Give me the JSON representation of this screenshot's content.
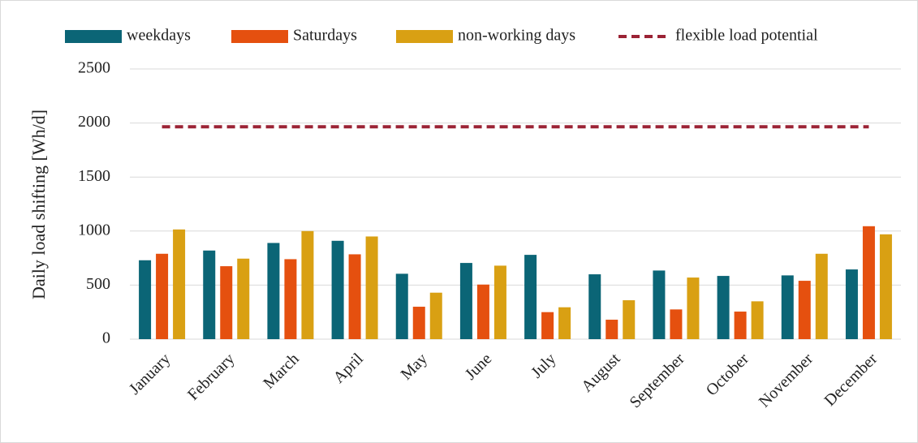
{
  "chart_data": {
    "type": "bar",
    "y_label": "Daily load shifting [Wh/d]",
    "categories": [
      "January",
      "February",
      "March",
      "April",
      "May",
      "June",
      "July",
      "August",
      "September",
      "October",
      "November",
      "December"
    ],
    "series": [
      {
        "name": "weekdays",
        "color": "#0b6576",
        "values": [
          730,
          820,
          890,
          910,
          605,
          705,
          780,
          600,
          635,
          585,
          590,
          645
        ]
      },
      {
        "name": "Saturdays",
        "color": "#e5500f",
        "values": [
          790,
          675,
          740,
          785,
          300,
          505,
          250,
          180,
          275,
          255,
          540,
          1045
        ]
      },
      {
        "name": "non-working days",
        "color": "#d9a013",
        "values": [
          1015,
          745,
          1000,
          950,
          430,
          680,
          295,
          360,
          570,
          350,
          790,
          970
        ]
      },
      {
        "name": "flexible load potential",
        "color": "#9b2335",
        "type": "line",
        "dashed": true,
        "values": [
          1965,
          1965,
          1965,
          1965,
          1965,
          1965,
          1965,
          1965,
          1965,
          1965,
          1965,
          1965
        ]
      }
    ],
    "ylim": [
      0,
      2500
    ],
    "yticks": [
      0,
      500,
      1000,
      1500,
      2000,
      2500
    ],
    "grid": true,
    "legend": "top"
  }
}
